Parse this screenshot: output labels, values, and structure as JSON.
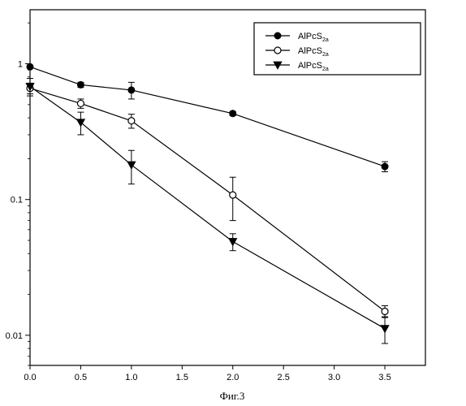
{
  "chart_data": {
    "type": "line",
    "title": "",
    "xlabel": "",
    "ylabel": "",
    "x_scale": "linear",
    "y_scale": "log",
    "xlim": [
      0,
      3.9
    ],
    "ylim": [
      0.006,
      2.5
    ],
    "x_ticks": [
      "0.0",
      "0.5",
      "1.0",
      "1.5",
      "2.0",
      "2.5",
      "3.0",
      "3.5"
    ],
    "y_ticks": [
      "0.01",
      "0.1",
      "1"
    ],
    "grid": false,
    "legend_position": "top-right",
    "caption": "Фиг.3",
    "series": [
      {
        "name": "AlPcS2a",
        "name_base": "AlPcS",
        "name_sub": "2a",
        "marker": "circle-filled",
        "x": [
          0,
          0.5,
          1.0,
          2.0,
          3.5
        ],
        "y": [
          0.95,
          0.7,
          0.64,
          0.43,
          0.175
        ],
        "err": [
          0.02,
          0.03,
          0.09,
          0.015,
          0.015
        ]
      },
      {
        "name": "AlPcS2a",
        "name_base": "AlPcS",
        "name_sub": "2a",
        "marker": "circle-open",
        "x": [
          0,
          0.5,
          1.0,
          2.0,
          3.5
        ],
        "y": [
          0.66,
          0.51,
          0.38,
          0.108,
          0.015
        ],
        "err": [
          0.06,
          0.04,
          0.045,
          0.038,
          0.0015
        ]
      },
      {
        "name": "AlPcS2a",
        "name_base": "AlPcS",
        "name_sub": "2a",
        "marker": "triangle-down-filled",
        "x": [
          0,
          0.5,
          1.0,
          2.0,
          3.5
        ],
        "y": [
          0.68,
          0.37,
          0.18,
          0.049,
          0.0112
        ],
        "err": [
          0.1,
          0.07,
          0.05,
          0.007,
          0.0025
        ]
      }
    ]
  }
}
